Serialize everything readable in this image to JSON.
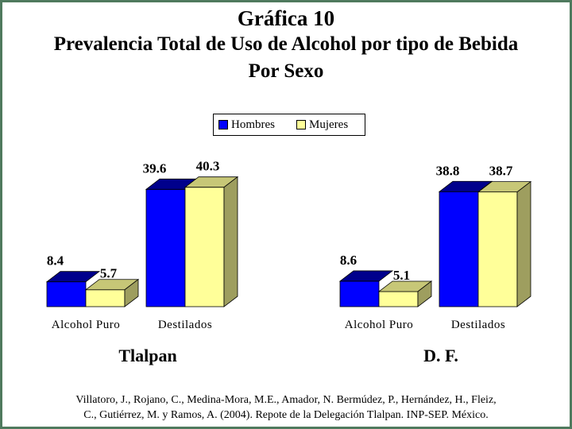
{
  "title": {
    "line1": "Gráfica 10",
    "line2": "Prevalencia Total de Uso de Alcohol por tipo de Bebida",
    "line3": "Por Sexo"
  },
  "legend": {
    "items": [
      {
        "label": "Hombres",
        "color": "#0000ff"
      },
      {
        "label": "Mujeres",
        "color": "#ffff99"
      }
    ]
  },
  "source": {
    "line1": "Villatoro, J., Rojano, C., Medina-Mora, M.E., Amador, N. Bermúdez, P., Hernández, H., Fleiz,",
    "line2": "C., Gutiérrez, M. y Ramos, A. (2004). Repote de la Delegación Tlalpan. INP-SEP. México."
  },
  "chart_data": [
    {
      "type": "bar",
      "group_label": "Tlalpan",
      "categories": [
        "Alcohol Puro",
        "Destilados"
      ],
      "series": [
        {
          "name": "Hombres",
          "values": [
            8.4,
            39.6
          ],
          "color": "#0000ff"
        },
        {
          "name": "Mujeres",
          "values": [
            5.7,
            40.3
          ],
          "color": "#ffff99"
        }
      ],
      "style": "3d"
    },
    {
      "type": "bar",
      "group_label": "D. F.",
      "categories": [
        "Alcohol Puro",
        "Destilados"
      ],
      "series": [
        {
          "name": "Hombres",
          "values": [
            8.6,
            38.8
          ],
          "color": "#0000ff"
        },
        {
          "name": "Mujeres",
          "values": [
            5.1,
            38.7
          ],
          "color": "#ffff99"
        }
      ],
      "style": "3d"
    }
  ]
}
